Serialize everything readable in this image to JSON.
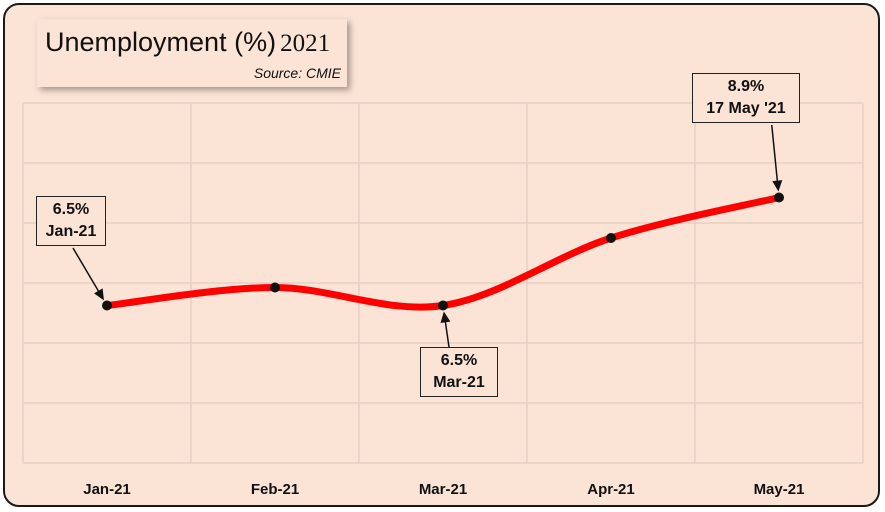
{
  "title": {
    "main": "Unemployment (%)",
    "year": "2021",
    "source": "Source: CMIE"
  },
  "chart_data": {
    "type": "line",
    "x": [
      "Jan-21",
      "Feb-21",
      "Mar-21",
      "Apr-21",
      "May-21"
    ],
    "series": [
      {
        "values": [
          6.5,
          6.9,
          6.5,
          8.0,
          8.9
        ]
      }
    ],
    "ylim": [
      3,
      11
    ],
    "grid": true,
    "line_color": "#ff0000",
    "annotations": [
      {
        "index": 0,
        "value_label": "6.5%",
        "date_label": "Jan-21"
      },
      {
        "index": 2,
        "value_label": "6.5%",
        "date_label": "Mar-21"
      },
      {
        "index": 4,
        "value_label": "8.9%",
        "date_label": "17 May '21"
      }
    ]
  }
}
